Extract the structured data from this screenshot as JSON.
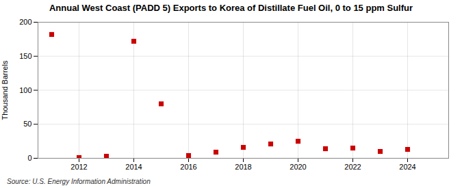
{
  "chart_data": {
    "type": "scatter",
    "title": "Annual West Coast (PADD 5) Exports to Korea of Distillate Fuel Oil, 0 to 15 ppm Sulfur",
    "ylabel": "Thousand Barrels",
    "source": "Source: U.S. Energy Information Administration",
    "x": [
      2011,
      2012,
      2013,
      2014,
      2015,
      2016,
      2017,
      2018,
      2019,
      2020,
      2021,
      2022,
      2023,
      2024
    ],
    "values": [
      182,
      1,
      3,
      172,
      80,
      4,
      9,
      16,
      21,
      25,
      14,
      15,
      10,
      13
    ],
    "color": "#cc0000",
    "marker": "square",
    "xlim": [
      2010.5,
      2025.5
    ],
    "xticks": [
      2012,
      2014,
      2016,
      2018,
      2020,
      2022,
      2024
    ],
    "ylim": [
      0,
      200
    ],
    "yticks": [
      0,
      50,
      100,
      150,
      200
    ],
    "grid": true
  }
}
